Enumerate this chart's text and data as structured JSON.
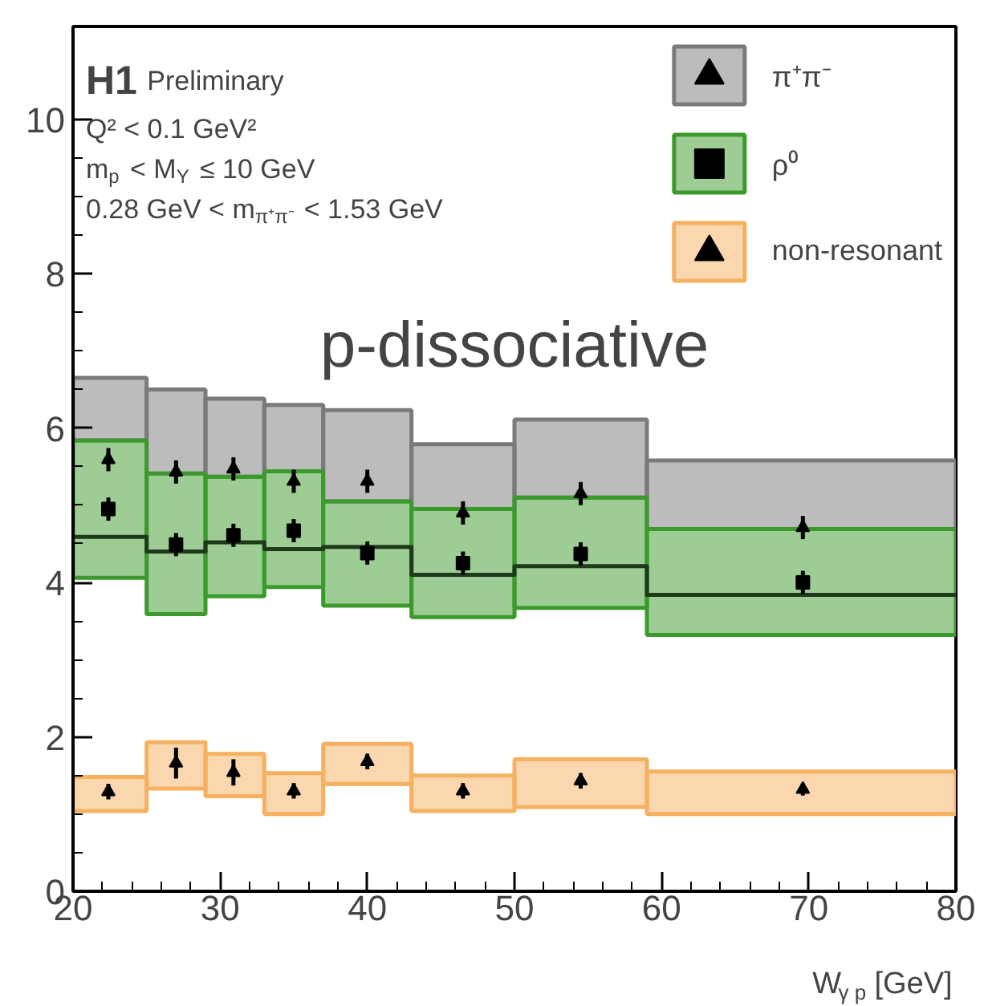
{
  "chart_data": {
    "type": "scatter",
    "annotations": [
      "H1 Preliminary",
      "Q² < 0.1 GeV²",
      "m$_{p}$ < M$_{Y}$ ≤ 10 GeV",
      "0.28 GeV < m$_{π⁺π⁻}$ < 1.53 GeV",
      "p-dissociative"
    ],
    "xlabel": "W$_{γ p}$ [GeV]",
    "xlim": [
      20,
      80
    ],
    "xticks": [
      20,
      30,
      40,
      50,
      60,
      70,
      80
    ],
    "ylim": [
      0,
      11.2
    ],
    "yticks": [
      0,
      2,
      4,
      6,
      8,
      10
    ],
    "grid": false,
    "legend": "top right",
    "series": [
      {
        "name": "π⁺π⁻",
        "type": "histogram",
        "color": "#7a7a7a",
        "bins": [
          20,
          25,
          29,
          33,
          37,
          43,
          50,
          59,
          80
        ],
        "base": [
          5.84,
          5.41,
          5.37,
          5.44,
          5.05,
          4.95,
          5.1,
          4.69
        ],
        "values": [
          0.81,
          1.09,
          1.01,
          0.86,
          1.18,
          0.84,
          1.01,
          0.89
        ]
      },
      {
        "name": "ρ⁰",
        "type": "histogram",
        "color": "#3c9a2c",
        "bins": [
          20,
          25,
          29,
          33,
          37,
          43,
          50,
          59,
          80
        ],
        "base": [
          4.06,
          3.59,
          3.82,
          3.94,
          3.7,
          3.55,
          3.67,
          3.32
        ],
        "values": [
          1.78,
          1.82,
          1.55,
          1.5,
          1.35,
          1.4,
          1.43,
          1.37
        ]
      },
      {
        "type": "step",
        "color": "#1e3a1a",
        "x": [
          20,
          25,
          29,
          33,
          37,
          43,
          50,
          59,
          80
        ],
        "values": [
          4.59,
          4.4,
          4.52,
          4.43,
          4.46,
          4.1,
          4.21,
          3.84,
          3.84
        ]
      },
      {
        "name": "non-resonant",
        "type": "histogram",
        "color": "#f5b060",
        "bins": [
          20,
          25,
          29,
          33,
          37,
          43,
          50,
          59,
          80
        ],
        "base": [
          1.04,
          1.33,
          1.23,
          1.0,
          1.39,
          1.04,
          1.09,
          1.0
        ],
        "values": [
          0.44,
          0.6,
          0.55,
          0.53,
          0.52,
          0.46,
          0.62,
          0.55
        ]
      },
      {
        "marker": "triangle",
        "color": "#000000",
        "x": [
          22.4,
          27.0,
          30.9,
          35.0,
          40.0,
          46.5,
          54.5,
          69.6
        ],
        "values": [
          5.59,
          5.43,
          5.47,
          5.31,
          5.31,
          4.9,
          5.15,
          4.71
        ],
        "errors": [
          0.15,
          0.15,
          0.15,
          0.15,
          0.15,
          0.15,
          0.15,
          0.15
        ]
      },
      {
        "marker": "square",
        "color": "#000000",
        "x": [
          22.4,
          27.0,
          30.9,
          35.0,
          40.0,
          46.5,
          54.5,
          69.6
        ],
        "values": [
          4.95,
          4.49,
          4.61,
          4.67,
          4.38,
          4.25,
          4.37,
          4.0
        ],
        "errors": [
          0.15,
          0.15,
          0.15,
          0.15,
          0.15,
          0.15,
          0.15,
          0.15
        ]
      },
      {
        "marker": "triangle",
        "color": "#000000",
        "x": [
          22.4,
          27.0,
          30.9,
          35.0,
          40.0,
          46.5,
          54.5,
          69.6
        ],
        "values": [
          1.29,
          1.66,
          1.54,
          1.3,
          1.68,
          1.3,
          1.43,
          1.32
        ],
        "errors": [
          0.1,
          0.2,
          0.17,
          0.1,
          0.1,
          0.1,
          0.1,
          0.08
        ]
      }
    ]
  }
}
